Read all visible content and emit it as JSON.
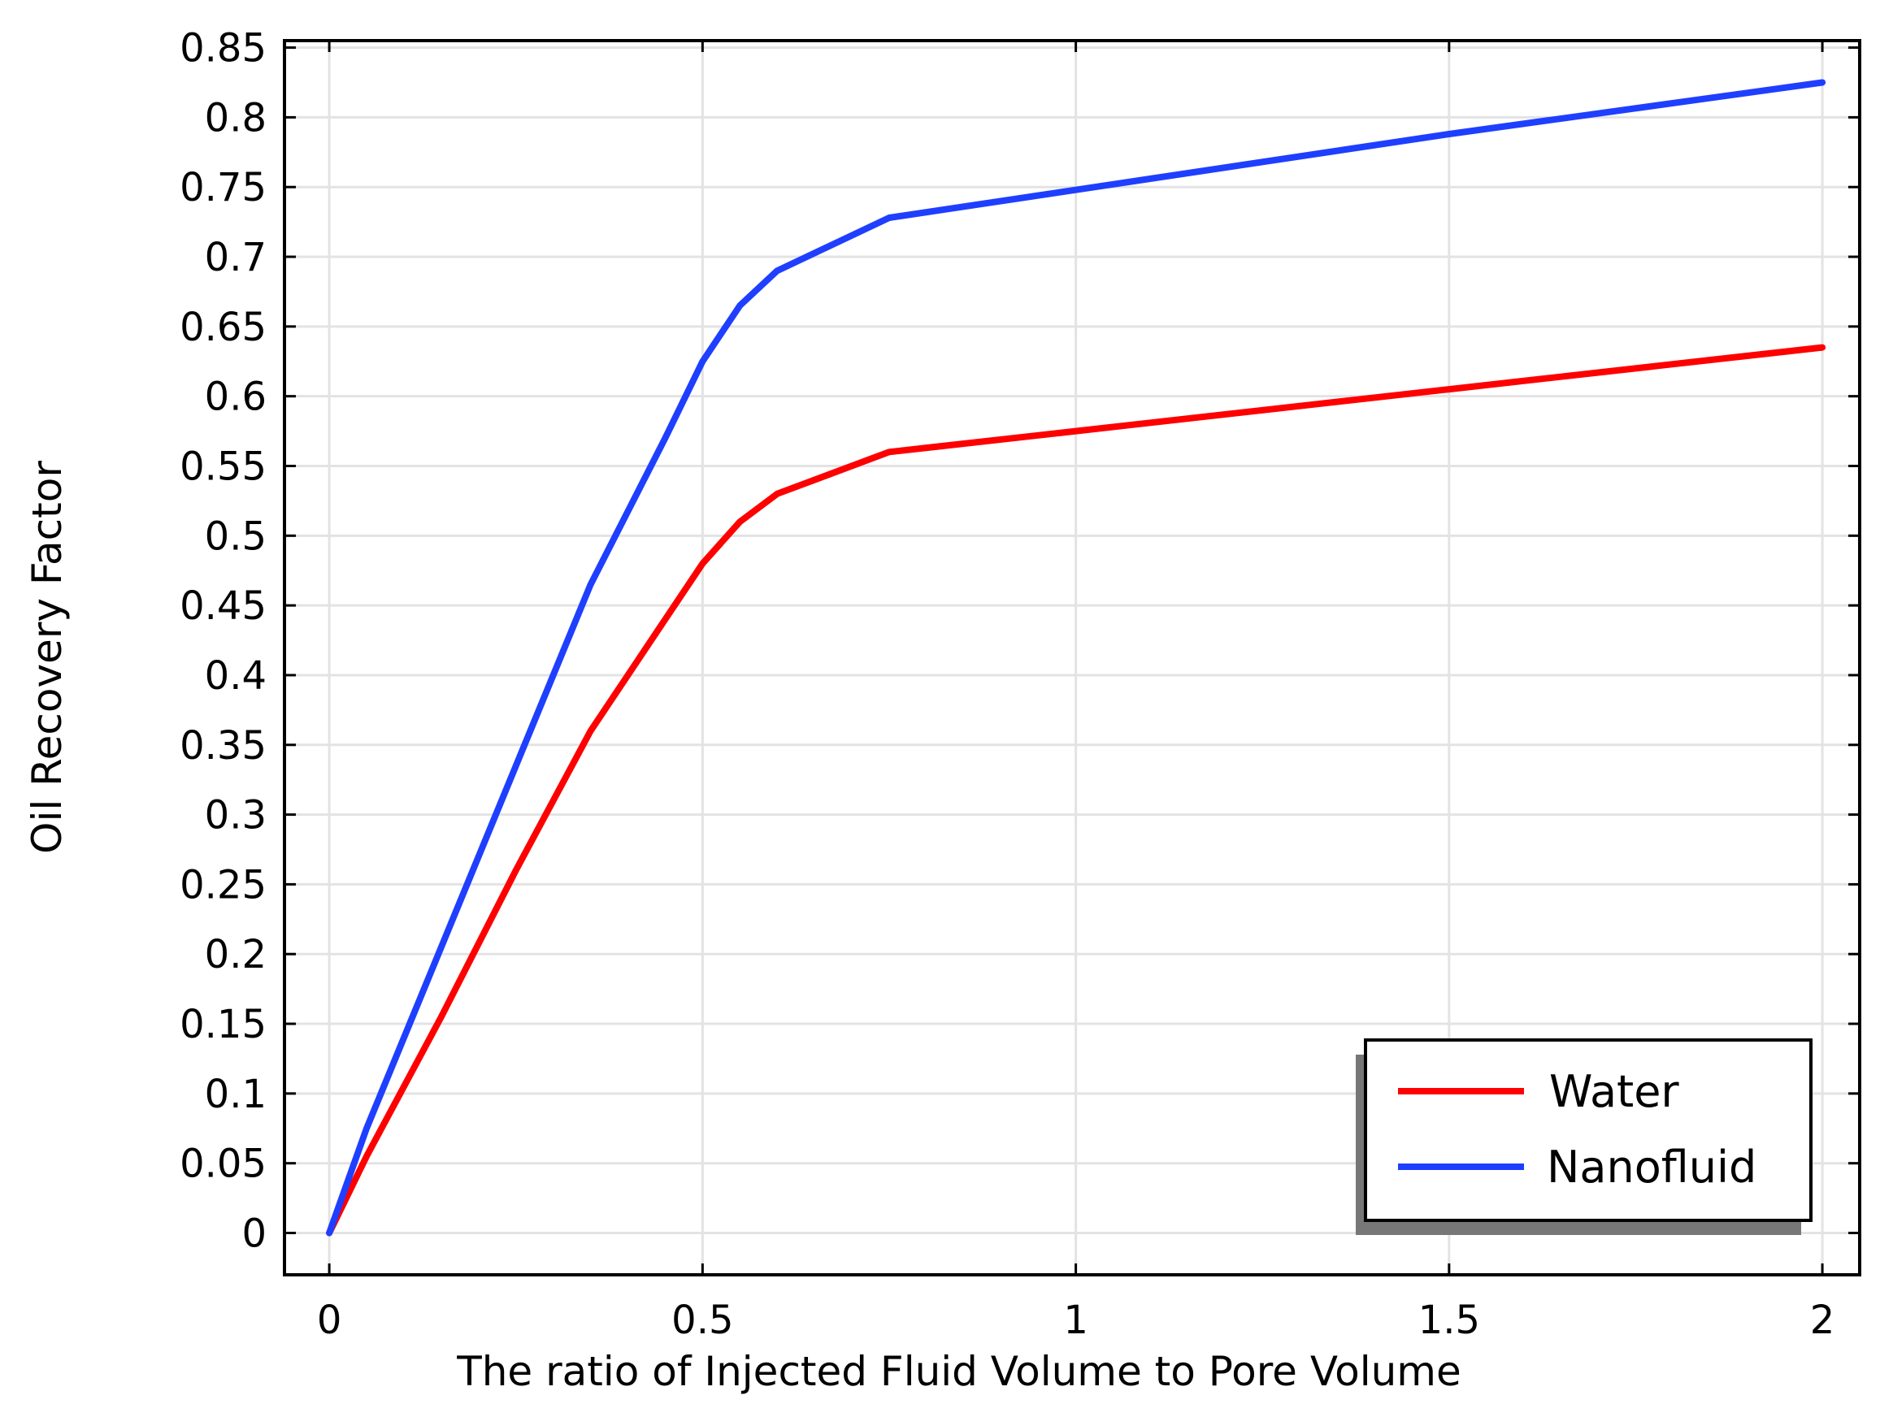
{
  "chart_data": {
    "type": "line",
    "title": "",
    "xlabel": "The ratio of  Injected Fluid Volume to Pore Volume",
    "ylabel": "Oil Recovery Factor",
    "xlim": [
      -0.06,
      2.05
    ],
    "ylim": [
      -0.03,
      0.855
    ],
    "xticks": [
      0,
      0.5,
      1,
      1.5,
      2
    ],
    "xtick_labels": [
      "0",
      "0.5",
      "1",
      "1.5",
      "2"
    ],
    "yticks": [
      0,
      0.05,
      0.1,
      0.15,
      0.2,
      0.25,
      0.3,
      0.35,
      0.4,
      0.45,
      0.5,
      0.55,
      0.6,
      0.65,
      0.7,
      0.75,
      0.8,
      0.85
    ],
    "ytick_labels": [
      "0",
      "0.05",
      "0.1",
      "0.15",
      "0.2",
      "0.25",
      "0.3",
      "0.35",
      "0.4",
      "0.45",
      "0.5",
      "0.55",
      "0.6",
      "0.65",
      "0.7",
      "0.75",
      "0.8",
      "0.85"
    ],
    "grid": true,
    "legend_position": "bottom-right",
    "series": [
      {
        "name": "Water",
        "color": "#ff0000",
        "x": [
          0,
          0.05,
          0.15,
          0.25,
          0.35,
          0.45,
          0.5,
          0.55,
          0.6,
          0.75,
          1,
          1.5,
          2
        ],
        "y": [
          0,
          0.055,
          0.155,
          0.26,
          0.36,
          0.44,
          0.48,
          0.51,
          0.53,
          0.56,
          0.575,
          0.605,
          0.635
        ]
      },
      {
        "name": "Nanofluid",
        "color": "#1f3fff",
        "x": [
          0,
          0.05,
          0.15,
          0.2,
          0.35,
          0.45,
          0.5,
          0.55,
          0.6,
          0.75,
          1,
          1.5,
          2
        ],
        "y": [
          0,
          0.075,
          0.205,
          0.27,
          0.465,
          0.57,
          0.625,
          0.665,
          0.69,
          0.728,
          0.748,
          0.788,
          0.825
        ]
      }
    ]
  }
}
